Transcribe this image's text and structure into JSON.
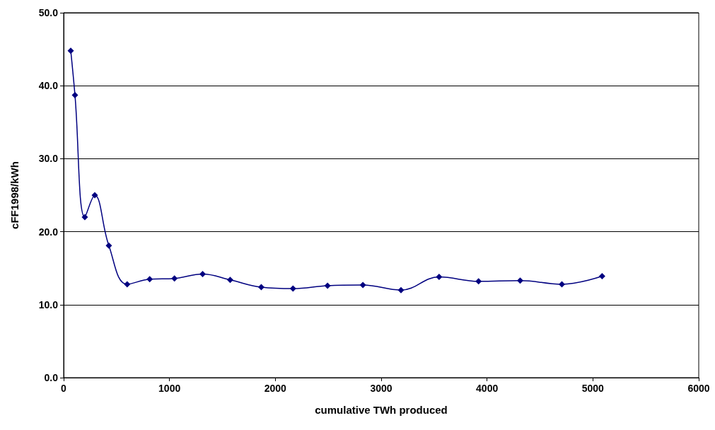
{
  "chart_data": {
    "type": "line",
    "xlabel": "cumulative TWh produced",
    "ylabel": "cFF1998/kWh",
    "x": [
      67,
      107,
      200,
      294,
      427,
      600,
      813,
      1047,
      1313,
      1573,
      1867,
      2167,
      2493,
      2827,
      3187,
      3547,
      3920,
      4313,
      4707,
      5087
    ],
    "series": [
      {
        "color": "#000080",
        "values": [
          44.8,
          38.7,
          22.0,
          25.0,
          18.1,
          12.8,
          13.5,
          13.6,
          14.2,
          13.4,
          12.4,
          12.2,
          12.6,
          12.7,
          12.0,
          13.8,
          13.2,
          13.3,
          12.8,
          13.9
        ]
      }
    ],
    "xlim": [
      0,
      6000
    ],
    "xticks": [
      0,
      1000,
      2000,
      3000,
      4000,
      5000,
      6000
    ],
    "ylim": [
      0,
      50
    ],
    "yticks": [
      {
        "value": 0,
        "label": "0.0"
      },
      {
        "value": 10,
        "label": "10.0"
      },
      {
        "value": 20,
        "label": "20.0"
      },
      {
        "value": 30,
        "label": "30.0"
      },
      {
        "value": 40,
        "label": "40.0"
      },
      {
        "value": 50,
        "label": "50.0"
      }
    ],
    "grid": "y",
    "marker": "diamond",
    "line_style": "solid"
  }
}
